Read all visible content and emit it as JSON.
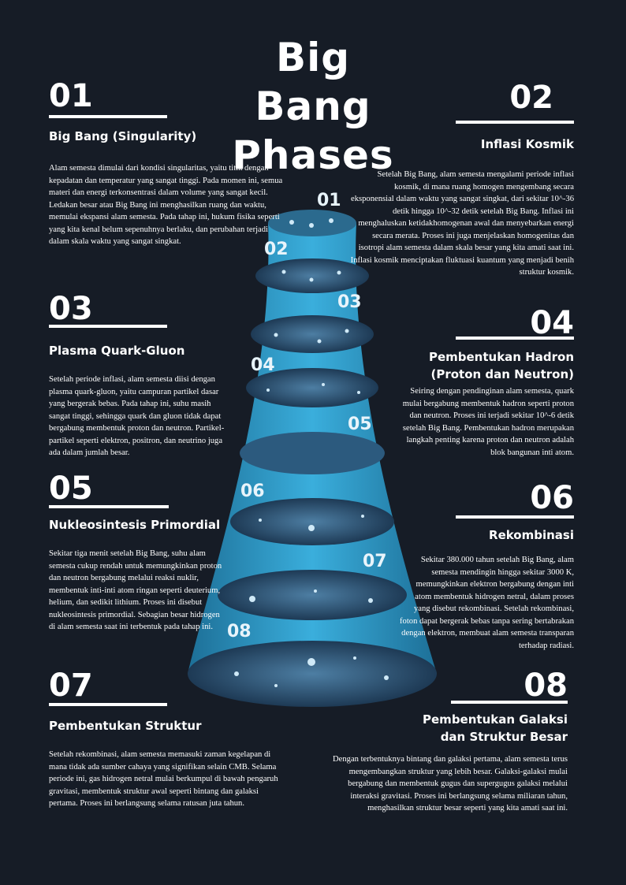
{
  "title": {
    "line1": "Big Bang",
    "line2": "Phases"
  },
  "phases": [
    {
      "number": "01",
      "heading": "Big Bang (Singularity)",
      "text": "Alam semesta dimulai dari kondisi singularitas, yaitu titik dengan kepadatan dan temperatur yang sangat tinggi. Pada momen ini, semua materi dan energi terkonsentrasi dalam volume yang sangat kecil. Ledakan besar atau Big Bang ini menghasilkan ruang dan waktu, memulai ekspansi alam semesta. Pada tahap ini, hukum fisika seperti yang kita kenal belum sepenuhnya berlaku, dan perubahan terjadi dalam skala waktu yang sangat singkat."
    },
    {
      "number": "02",
      "heading": "Inflasi Kosmik",
      "text": "Setelah Big Bang, alam semesta mengalami periode inflasi kosmik, di mana ruang homogen mengembang secara eksponensial dalam waktu yang sangat singkat, dari sekitar 10^-36 detik hingga 10^-32 detik setelah Big Bang. Inflasi ini menghaluskan ketidakhomogenan awal dan menyebarkan energi secara merata. Proses ini juga menjelaskan homogenitas dan isotropi alam semesta dalam skala besar yang kita amati saat ini. Inflasi kosmik menciptakan fluktuasi kuantum yang menjadi benih struktur kosmik."
    },
    {
      "number": "03",
      "heading": "Plasma Quark-Gluon",
      "text": "Setelah periode inflasi, alam semesta diisi dengan plasma quark-gluon, yaitu campuran partikel dasar yang bergerak bebas. Pada tahap ini, suhu masih sangat tinggi, sehingga quark dan gluon tidak dapat bergabung membentuk proton dan neutron. Partikel-partikel seperti elektron, positron, dan neutrino juga ada dalam jumlah besar."
    },
    {
      "number": "04",
      "heading": "Pembentukan Hadron (Proton dan Neutron)",
      "text": "Seiring dengan pendinginan alam semesta, quark mulai bergabung membentuk hadron seperti proton dan neutron. Proses ini terjadi sekitar 10^-6 detik setelah Big Bang. Pembentukan hadron merupakan langkah penting karena proton dan neutron adalah blok bangunan inti atom."
    },
    {
      "number": "05",
      "heading": "Nukleosintesis Primordial",
      "text": "Sekitar tiga menit setelah Big Bang, suhu alam semesta cukup rendah untuk memungkinkan proton dan neutron bergabung melalui reaksi nuklir, membentuk inti-inti atom ringan seperti deuterium, helium, dan sedikit lithium. Proses ini disebut nukleosintesis primordial. Sebagian besar hidrogen di alam semesta saat ini terbentuk pada tahap ini."
    },
    {
      "number": "06",
      "heading": "Rekombinasi",
      "text": "Sekitar 380.000 tahun setelah Big Bang, alam semesta mendingin hingga sekitar 3000 K, memungkinkan elektron bergabung dengan inti atom membentuk hidrogen netral, dalam proses yang disebut rekombinasi. Setelah rekombinasi, foton dapat bergerak bebas tanpa sering bertabrakan dengan elektron, membuat alam semesta transparan terhadap radiasi."
    },
    {
      "number": "07",
      "heading": "Pembentukan Struktur",
      "text": "Setelah rekombinasi, alam semesta memasuki zaman kegelapan di mana tidak ada sumber cahaya yang signifikan selain CMB. Selama periode ini, gas hidrogen netral mulai berkumpul di bawah pengaruh gravitasi, membentuk struktur awal seperti bintang dan galaksi pertama. Proses ini berlangsung selama ratusan juta tahun."
    },
    {
      "number": "08",
      "heading": "Pembentukan Galaksi dan Struktur Besar",
      "text": "Dengan terbentuknya bintang dan galaksi pertama, alam semesta terus mengembangkan struktur yang lebih besar. Galaksi-galaksi mulai bergabung dan membentuk gugus dan supergugus galaksi melalui interaksi gravitasi. Proses ini berlangsung selama miliaran tahun, menghasilkan struktur besar seperti yang kita amati saat ini."
    }
  ],
  "funnel_labels": [
    "01",
    "02",
    "03",
    "04",
    "05",
    "06",
    "07",
    "08"
  ],
  "colors": {
    "background": "#161c26",
    "funnel": "#2e9ccd",
    "disc": "#1a3550",
    "text": "#ffffff"
  }
}
